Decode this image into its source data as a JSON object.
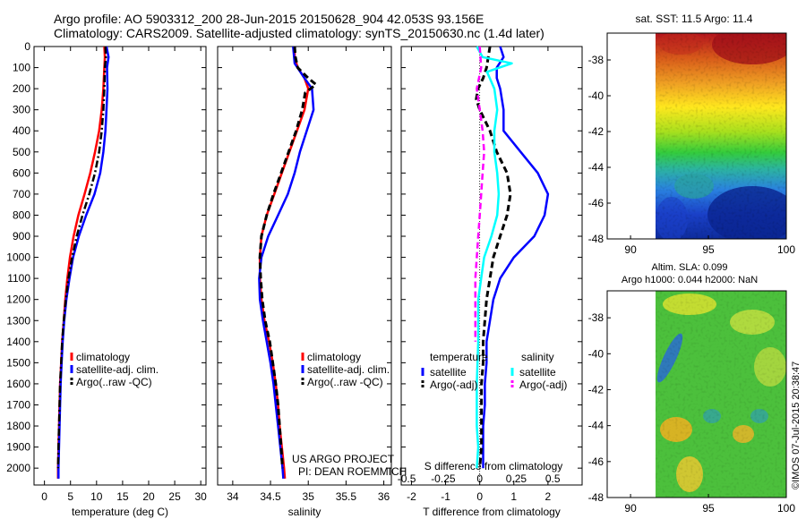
{
  "header": {
    "line1": "Argo profile: AO 5903312_200 28-Jun-2015 20150628_904 42.053S 93.156E",
    "line2": "Climatology: CARS2009. Satellite-adjusted climatology: synTS_20150630.nc (1.4d later)"
  },
  "credits": {
    "project": "US ARGO PROJECT",
    "pi": "PI: DEAN ROEMMICH",
    "vertical_stamp": "©IMOS 07-Jul-2015 20:38:47"
  },
  "colors": {
    "climatology": "#ff0000",
    "satellite": "#0000ff",
    "argo": "#000000",
    "sal_satellite": "#00ffff",
    "sal_argo": "#ff00ff"
  },
  "chart_data": [
    {
      "id": "temperature_panel",
      "type": "line",
      "xlabel": "temperature (deg C)",
      "ylabel": "",
      "xlim": [
        -2,
        31
      ],
      "ylim": [
        2080,
        0
      ],
      "xticks": [
        0,
        5,
        10,
        15,
        20,
        25,
        30
      ],
      "yticks": [
        0,
        100,
        200,
        300,
        400,
        500,
        600,
        700,
        800,
        900,
        1000,
        1100,
        1200,
        1300,
        1400,
        1500,
        1600,
        1700,
        1800,
        1900,
        2000
      ],
      "legend": [
        "climatology",
        "satellite-adj. clim.",
        "Argo(..raw -QC)"
      ],
      "series": [
        {
          "name": "climatology",
          "style": "solid",
          "color": "#ff0000",
          "points": [
            [
              11.5,
              0
            ],
            [
              11.6,
              50
            ],
            [
              11.5,
              100
            ],
            [
              11.3,
              200
            ],
            [
              11.0,
              300
            ],
            [
              10.5,
              400
            ],
            [
              9.7,
              500
            ],
            [
              8.8,
              600
            ],
            [
              7.7,
              700
            ],
            [
              6.5,
              800
            ],
            [
              5.6,
              900
            ],
            [
              4.9,
              1000
            ],
            [
              4.4,
              1100
            ],
            [
              4.0,
              1200
            ],
            [
              3.7,
              1300
            ],
            [
              3.4,
              1400
            ],
            [
              3.2,
              1500
            ],
            [
              3.0,
              1600
            ],
            [
              2.9,
              1700
            ],
            [
              2.8,
              1800
            ],
            [
              2.7,
              1900
            ],
            [
              2.6,
              2000
            ],
            [
              2.6,
              2050
            ]
          ]
        },
        {
          "name": "satellite-adj. clim.",
          "style": "solid",
          "color": "#0000ff",
          "points": [
            [
              11.9,
              0
            ],
            [
              12.3,
              50
            ],
            [
              12.0,
              100
            ],
            [
              12.1,
              200
            ],
            [
              11.9,
              300
            ],
            [
              11.7,
              400
            ],
            [
              11.3,
              500
            ],
            [
              10.7,
              600
            ],
            [
              9.6,
              700
            ],
            [
              8.0,
              800
            ],
            [
              6.6,
              900
            ],
            [
              5.5,
              1000
            ],
            [
              4.8,
              1100
            ],
            [
              4.2,
              1200
            ],
            [
              3.8,
              1300
            ],
            [
              3.5,
              1400
            ],
            [
              3.3,
              1500
            ],
            [
              3.1,
              1600
            ],
            [
              3.0,
              1700
            ],
            [
              2.9,
              1800
            ],
            [
              2.8,
              1900
            ],
            [
              2.7,
              2000
            ],
            [
              2.7,
              2050
            ]
          ]
        },
        {
          "name": "Argo(..raw -QC)",
          "style": "dashdot",
          "color": "#000000",
          "points": [
            [
              11.7,
              0
            ],
            [
              11.8,
              50
            ],
            [
              11.6,
              100
            ],
            [
              11.5,
              200
            ],
            [
              11.3,
              300
            ],
            [
              11.0,
              400
            ],
            [
              10.5,
              500
            ],
            [
              9.7,
              600
            ],
            [
              8.6,
              700
            ],
            [
              7.3,
              800
            ],
            [
              6.2,
              900
            ],
            [
              5.3,
              1000
            ],
            [
              4.6,
              1100
            ],
            [
              4.1,
              1200
            ],
            [
              3.7,
              1300
            ],
            [
              3.4,
              1400
            ],
            [
              3.2,
              1500
            ],
            [
              3.0,
              1600
            ],
            [
              2.9,
              1700
            ],
            [
              2.8,
              1800
            ],
            [
              2.7,
              1900
            ],
            [
              2.6,
              2000
            ]
          ]
        }
      ]
    },
    {
      "id": "salinity_panel",
      "type": "line",
      "xlabel": "salinity",
      "ylabel": "",
      "xlim": [
        33.8,
        36.1
      ],
      "ylim": [
        2080,
        0
      ],
      "xticks": [
        34,
        34.5,
        35,
        35.5,
        36
      ],
      "legend": [
        "climatology",
        "satellite-adj. clim.",
        "Argo(..raw -QC)"
      ],
      "series": [
        {
          "name": "climatology",
          "style": "solid",
          "color": "#ff0000",
          "points": [
            [
              34.82,
              0
            ],
            [
              34.82,
              50
            ],
            [
              34.86,
              100
            ],
            [
              34.95,
              150
            ],
            [
              35.0,
              200
            ],
            [
              34.95,
              300
            ],
            [
              34.85,
              400
            ],
            [
              34.75,
              500
            ],
            [
              34.65,
              600
            ],
            [
              34.55,
              700
            ],
            [
              34.45,
              800
            ],
            [
              34.38,
              900
            ],
            [
              34.36,
              1000
            ],
            [
              34.36,
              1100
            ],
            [
              34.38,
              1200
            ],
            [
              34.42,
              1300
            ],
            [
              34.48,
              1400
            ],
            [
              34.53,
              1500
            ],
            [
              34.57,
              1600
            ],
            [
              34.6,
              1700
            ],
            [
              34.62,
              1800
            ],
            [
              34.65,
              1900
            ],
            [
              34.68,
              2000
            ],
            [
              34.69,
              2050
            ]
          ]
        },
        {
          "name": "satellite-adj. clim.",
          "style": "solid",
          "color": "#0000ff",
          "points": [
            [
              34.8,
              0
            ],
            [
              34.82,
              80
            ],
            [
              34.95,
              150
            ],
            [
              35.05,
              200
            ],
            [
              35.07,
              300
            ],
            [
              34.98,
              400
            ],
            [
              34.89,
              500
            ],
            [
              34.82,
              600
            ],
            [
              34.73,
              700
            ],
            [
              34.6,
              800
            ],
            [
              34.47,
              900
            ],
            [
              34.38,
              1000
            ],
            [
              34.35,
              1100
            ],
            [
              34.36,
              1200
            ],
            [
              34.4,
              1300
            ],
            [
              34.45,
              1400
            ],
            [
              34.5,
              1500
            ],
            [
              34.54,
              1600
            ],
            [
              34.57,
              1700
            ],
            [
              34.6,
              1800
            ],
            [
              34.63,
              1900
            ],
            [
              34.66,
              2000
            ],
            [
              34.67,
              2050
            ]
          ]
        },
        {
          "name": "Argo(..raw -QC)",
          "style": "dashed",
          "color": "#000000",
          "points": [
            [
              34.82,
              0
            ],
            [
              34.83,
              50
            ],
            [
              34.86,
              100
            ],
            [
              35.0,
              150
            ],
            [
              35.1,
              180
            ],
            [
              34.96,
              220
            ],
            [
              34.92,
              300
            ],
            [
              34.84,
              400
            ],
            [
              34.74,
              500
            ],
            [
              34.64,
              600
            ],
            [
              34.54,
              700
            ],
            [
              34.45,
              800
            ],
            [
              34.38,
              900
            ],
            [
              34.36,
              1000
            ],
            [
              34.37,
              1100
            ],
            [
              34.39,
              1200
            ],
            [
              34.43,
              1300
            ],
            [
              34.49,
              1400
            ],
            [
              34.53,
              1500
            ],
            [
              34.57,
              1600
            ],
            [
              34.6,
              1700
            ],
            [
              34.62,
              1800
            ],
            [
              34.64,
              1900
            ],
            [
              34.66,
              2000
            ]
          ]
        }
      ]
    },
    {
      "id": "difference_panel",
      "type": "line",
      "xlabel": "T difference from climatology",
      "x2label": "S difference from climatology",
      "xlim": [
        -2.3,
        3.0
      ],
      "ylim": [
        2080,
        0
      ],
      "xticks": [
        -2,
        -1,
        0,
        1,
        2
      ],
      "x2ticks": [
        -0.5,
        -0.25,
        0,
        0.25,
        0.5
      ],
      "legend_titles": [
        "temperature",
        "salinity"
      ],
      "legend": [
        "satellite",
        "Argo(-adj)",
        "satellite",
        "Argo(-adj)"
      ],
      "series": [
        {
          "name": "satellite",
          "group": "temperature",
          "style": "solid",
          "color": "#0000ff",
          "points": [
            [
              0.6,
              0
            ],
            [
              0.7,
              50
            ],
            [
              0.5,
              100
            ],
            [
              0.5,
              150
            ],
            [
              0.6,
              200
            ],
            [
              0.7,
              300
            ],
            [
              0.7,
              400
            ],
            [
              1.2,
              500
            ],
            [
              1.7,
              600
            ],
            [
              2.0,
              700
            ],
            [
              1.9,
              800
            ],
            [
              1.6,
              900
            ],
            [
              1.0,
              1000
            ],
            [
              0.6,
              1100
            ],
            [
              0.4,
              1200
            ],
            [
              0.3,
              1300
            ],
            [
              0.2,
              1400
            ],
            [
              0.2,
              1500
            ],
            [
              0.15,
              1600
            ],
            [
              0.15,
              1700
            ],
            [
              0.1,
              1800
            ],
            [
              0.1,
              1900
            ],
            [
              0.1,
              2000
            ]
          ]
        },
        {
          "name": "Argo(-adj)",
          "group": "temperature",
          "style": "dashed",
          "color": "#000000",
          "points": [
            [
              0.3,
              0
            ],
            [
              0.25,
              50
            ],
            [
              0.2,
              100
            ],
            [
              0.1,
              150
            ],
            [
              -0.05,
              200
            ],
            [
              -0.1,
              250
            ],
            [
              0.0,
              300
            ],
            [
              0.3,
              400
            ],
            [
              0.5,
              500
            ],
            [
              0.8,
              600
            ],
            [
              0.9,
              700
            ],
            [
              0.8,
              800
            ],
            [
              0.6,
              900
            ],
            [
              0.4,
              1000
            ],
            [
              0.3,
              1100
            ],
            [
              0.2,
              1200
            ],
            [
              0.15,
              1300
            ],
            [
              0.1,
              1400
            ],
            [
              0.1,
              1500
            ],
            [
              0.05,
              1600
            ],
            [
              0.05,
              1700
            ],
            [
              0.05,
              1800
            ],
            [
              0.05,
              1900
            ],
            [
              0.0,
              2000
            ]
          ]
        },
        {
          "name": "satellite",
          "group": "salinity",
          "style": "solid",
          "color": "#00ffff",
          "points": [
            [
              -0.02,
              0
            ],
            [
              0.02,
              50
            ],
            [
              0.22,
              80
            ],
            [
              0.05,
              120
            ],
            [
              0.1,
              200
            ],
            [
              0.12,
              300
            ],
            [
              0.1,
              400
            ],
            [
              0.1,
              500
            ],
            [
              0.12,
              600
            ],
            [
              0.13,
              700
            ],
            [
              0.12,
              800
            ],
            [
              0.08,
              900
            ],
            [
              0.03,
              1000
            ],
            [
              0.01,
              1100
            ],
            [
              -0.01,
              1200
            ],
            [
              -0.01,
              1400
            ],
            [
              -0.02,
              1600
            ],
            [
              -0.02,
              1800
            ],
            [
              -0.01,
              1900
            ],
            [
              -0.02,
              2000
            ]
          ]
        },
        {
          "name": "Argo(-adj)",
          "group": "salinity",
          "style": "dashed",
          "color": "#ff00ff",
          "points": [
            [
              0.0,
              0
            ],
            [
              0.01,
              100
            ],
            [
              -0.02,
              200
            ],
            [
              0.0,
              300
            ],
            [
              0.02,
              400
            ],
            [
              0.03,
              500
            ],
            [
              0.02,
              600
            ],
            [
              0.01,
              700
            ],
            [
              0.0,
              800
            ],
            [
              -0.01,
              900
            ],
            [
              -0.02,
              1000
            ],
            [
              -0.03,
              1100
            ],
            [
              -0.03,
              1200
            ],
            [
              -0.03,
              1300
            ],
            [
              -0.03,
              1400
            ]
          ]
        }
      ]
    },
    {
      "id": "sst_map",
      "type": "heatmap",
      "title": "sat. SST: 11.5 Argo: 11.4",
      "xlim": [
        88.5,
        100
      ],
      "ylim": [
        -48,
        -36.5
      ],
      "xticks": [
        90,
        95,
        100
      ],
      "yticks": [
        -38,
        -40,
        -42,
        -44,
        -46,
        -48
      ]
    },
    {
      "id": "sla_map",
      "type": "heatmap",
      "title": "Altim. SLA: 0.099",
      "subtitle": "Argo h1000: 0.044 h2000: NaN",
      "xlim": [
        88.5,
        100
      ],
      "ylim": [
        -48,
        -36.5
      ],
      "xticks": [
        90,
        95,
        100
      ],
      "yticks": [
        -38,
        -40,
        -42,
        -44,
        -46,
        -48
      ]
    }
  ]
}
